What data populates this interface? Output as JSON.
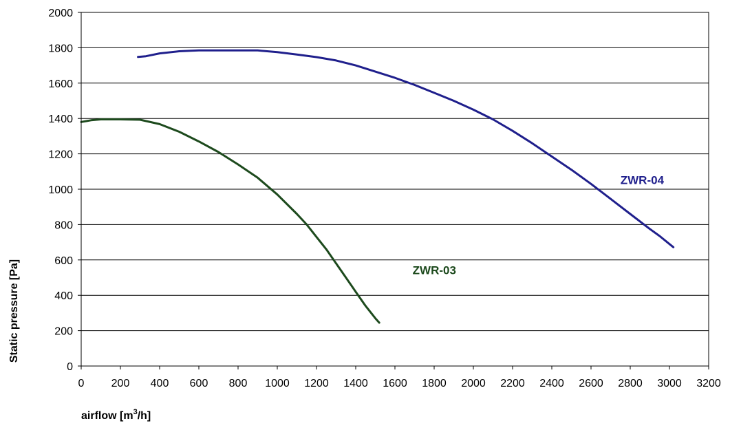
{
  "chart_data": {
    "type": "line",
    "title": "",
    "xlabel": "airflow [m",
    "xlabel_sup": "3",
    "xlabel_suffix": "/h]",
    "ylabel": "Static pressure [Pa]",
    "xlim": [
      0,
      3200
    ],
    "ylim": [
      0,
      2000
    ],
    "x_ticks": [
      0,
      200,
      400,
      600,
      800,
      1000,
      1200,
      1400,
      1600,
      1800,
      2000,
      2200,
      2400,
      2600,
      2800,
      3000,
      3200
    ],
    "y_ticks": [
      0,
      200,
      400,
      600,
      800,
      1000,
      1200,
      1400,
      1600,
      1800,
      2000
    ],
    "grid": "horizontal",
    "legend": "none",
    "series": [
      {
        "name": "ZWR-04",
        "color": "#1f1f8c",
        "x": [
          290,
          330,
          400,
          500,
          600,
          700,
          800,
          900,
          1000,
          1100,
          1200,
          1300,
          1400,
          1500,
          1600,
          1700,
          1800,
          1900,
          2000,
          2100,
          2200,
          2300,
          2400,
          2500,
          2600,
          2700,
          2800,
          2900,
          2950,
          3000,
          3020
        ],
        "y": [
          1748,
          1752,
          1768,
          1780,
          1785,
          1785,
          1785,
          1785,
          1775,
          1762,
          1747,
          1728,
          1700,
          1665,
          1630,
          1590,
          1545,
          1500,
          1450,
          1395,
          1330,
          1260,
          1185,
          1110,
          1030,
          945,
          860,
          775,
          735,
          690,
          672
        ]
      },
      {
        "name": "ZWR-03",
        "color": "#1d4a1d",
        "x": [
          0,
          50,
          100,
          200,
          300,
          400,
          500,
          600,
          700,
          800,
          900,
          1000,
          1100,
          1150,
          1200,
          1250,
          1300,
          1350,
          1400,
          1450,
          1500,
          1520
        ],
        "y": [
          1380,
          1390,
          1395,
          1395,
          1393,
          1368,
          1325,
          1270,
          1210,
          1140,
          1065,
          970,
          860,
          800,
          730,
          660,
          580,
          500,
          420,
          340,
          270,
          245
        ]
      }
    ],
    "annotations": [
      {
        "text": "ZWR-04",
        "series": 0,
        "x": 2750,
        "y": 1030
      },
      {
        "text": "ZWR-03",
        "series": 1,
        "x": 1690,
        "y": 520
      }
    ]
  }
}
